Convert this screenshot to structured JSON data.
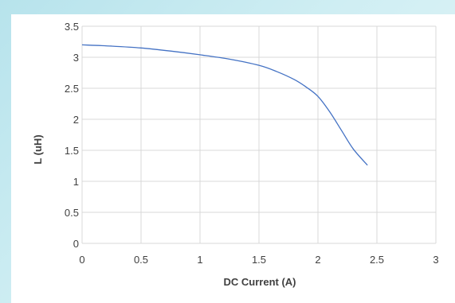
{
  "chart_data": {
    "type": "line",
    "xlabel": "DC Current (A)",
    "ylabel": "L (uH)",
    "xlim": [
      0,
      3
    ],
    "ylim": [
      0,
      3.5
    ],
    "x_ticks": [
      "0",
      "0.5",
      "1",
      "1.5",
      "2",
      "2.5",
      "3"
    ],
    "y_ticks": [
      "0",
      "0.5",
      "1",
      "1.5",
      "2",
      "2.5",
      "3",
      "3.5"
    ],
    "grid": true,
    "series": [
      {
        "color": "#4472c4",
        "x": [
          0,
          0.25,
          0.5,
          0.75,
          1.0,
          1.25,
          1.5,
          1.65,
          1.8,
          1.9,
          2.0,
          2.1,
          2.2,
          2.3,
          2.42
        ],
        "y": [
          3.2,
          3.18,
          3.15,
          3.1,
          3.04,
          2.97,
          2.87,
          2.77,
          2.64,
          2.52,
          2.37,
          2.12,
          1.82,
          1.52,
          1.26
        ]
      }
    ]
  }
}
